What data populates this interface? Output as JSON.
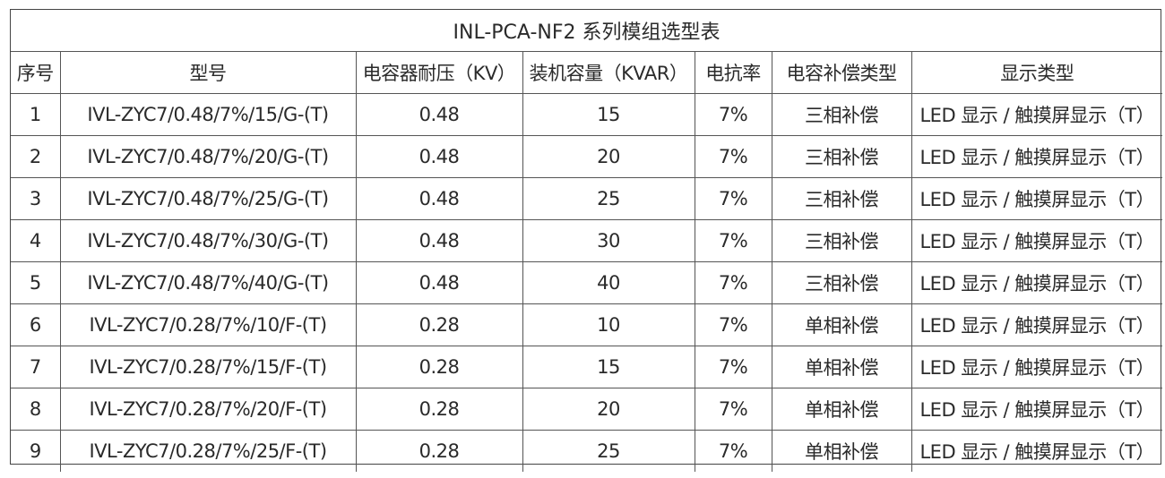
{
  "table": {
    "title": "INL-PCA-NF2 系列模组选型表",
    "headers": [
      "序号",
      "型号",
      "电容器耐压（KV）",
      "装机容量（KVAR）",
      "电抗率",
      "电容补偿类型",
      "显示类型"
    ],
    "rows": [
      [
        "1",
        "IVL-ZYC7/0.48/7%/15/G-(T)",
        "0.48",
        "15",
        "7%",
        "三相补偿",
        "LED 显示 / 触摸屏显示（T）"
      ],
      [
        "2",
        "IVL-ZYC7/0.48/7%/20/G-(T)",
        "0.48",
        "20",
        "7%",
        "三相补偿",
        "LED 显示 / 触摸屏显示（T）"
      ],
      [
        "3",
        "IVL-ZYC7/0.48/7%/25/G-(T)",
        "0.48",
        "25",
        "7%",
        "三相补偿",
        "LED 显示 / 触摸屏显示（T）"
      ],
      [
        "4",
        "IVL-ZYC7/0.48/7%/30/G-(T)",
        "0.48",
        "30",
        "7%",
        "三相补偿",
        "LED 显示 / 触摸屏显示（T）"
      ],
      [
        "5",
        "IVL-ZYC7/0.48/7%/40/G-(T)",
        "0.48",
        "40",
        "7%",
        "三相补偿",
        "LED 显示 / 触摸屏显示（T）"
      ],
      [
        "6",
        "IVL-ZYC7/0.28/7%/10/F-(T)",
        "0.28",
        "10",
        "7%",
        "单相补偿",
        "LED 显示 / 触摸屏显示（T）"
      ],
      [
        "7",
        "IVL-ZYC7/0.28/7%/15/F-(T)",
        "0.28",
        "15",
        "7%",
        "单相补偿",
        "LED 显示 / 触摸屏显示（T）"
      ],
      [
        "8",
        "IVL-ZYC7/0.28/7%/20/F-(T)",
        "0.28",
        "20",
        "7%",
        "单相补偿",
        "LED 显示 / 触摸屏显示（T）"
      ],
      [
        "9",
        "IVL-ZYC7/0.28/7%/25/F-(T)",
        "0.28",
        "25",
        "7%",
        "单相补偿",
        "LED 显示 / 触摸屏显示（T）"
      ]
    ]
  }
}
